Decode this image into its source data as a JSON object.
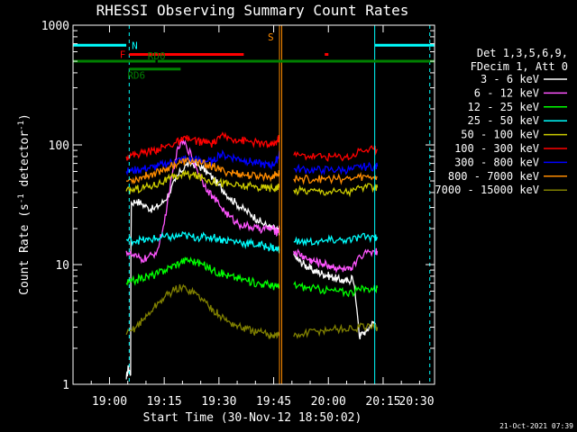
{
  "chart_data": {
    "type": "line",
    "title": "RHESSI Observing Summary Count Rates",
    "xlabel": "Start Time (30-Nov-12 18:50:02)",
    "ylabel_pre": "Count Rate (s",
    "ylabel_sup1": "-1",
    "ylabel_mid": " detector",
    "ylabel_sup2": "-1",
    "ylabel_post": ")",
    "y_scale": "log",
    "ylim": [
      1,
      1000
    ],
    "xlim_min": [
      0,
      99.1
    ],
    "x_ticks": [
      {
        "min": 10,
        "label": "19:00"
      },
      {
        "min": 25,
        "label": "19:15"
      },
      {
        "min": 40,
        "label": "19:30"
      },
      {
        "min": 55,
        "label": "19:45"
      },
      {
        "min": 70,
        "label": "20:00"
      },
      {
        "min": 85,
        "label": "20:15"
      },
      {
        "min": 100,
        "label": "20:30"
      }
    ],
    "y_ticks": [
      {
        "value": 1,
        "label": "1"
      },
      {
        "value": 10,
        "label": "10"
      },
      {
        "value": 100,
        "label": "100"
      },
      {
        "value": 1000,
        "label": "1000"
      }
    ],
    "legend_placement": "right",
    "legend_header": [
      "Det 1,3,5,6,9,",
      "FDecim 1, Att 0"
    ],
    "series": [
      {
        "name": "3 - 6 keV",
        "color": "#ffffff",
        "x": [
          14.6,
          15.2,
          15.8,
          16,
          17.5,
          19,
          20.5,
          22,
          23.5,
          25,
          26.5,
          28,
          29.5,
          31,
          32.5,
          34,
          35.5,
          37,
          38.5,
          40,
          41.5,
          43,
          44.5,
          46,
          47.5,
          49,
          50.5,
          52,
          53.5,
          54.5,
          55.5,
          56.1,
          56.6,
          60.5,
          61.5,
          62.5,
          63.5,
          64.5,
          65.5,
          66.5,
          67.5,
          68.5,
          69.5,
          70.5,
          71.5,
          72.5,
          73.5,
          74.5,
          75.5,
          76.5,
          78.5,
          79.5,
          80.5,
          81.5,
          82.5,
          83.4
        ],
        "y": [
          1.1,
          1.4,
          1.2,
          33,
          34,
          32,
          30,
          29,
          31,
          34,
          40,
          50,
          60,
          68,
          70,
          68,
          64,
          58,
          52,
          46,
          41,
          36,
          33,
          30,
          28,
          26,
          24,
          22,
          21,
          20,
          20,
          19,
          19,
          12,
          11,
          10.5,
          10,
          9.5,
          9,
          8.8,
          8.6,
          8.4,
          8.2,
          8,
          7.8,
          7.6,
          7.4,
          7.3,
          7.2,
          8,
          2.5,
          2.7,
          2.8,
          3.1,
          3.3,
          3
        ]
      },
      {
        "name": "6 - 12 keV",
        "color": "#ff55ff",
        "x": [
          14.6,
          16,
          17.5,
          19,
          20.5,
          22,
          23.5,
          25,
          26.5,
          28,
          29.5,
          31,
          32.5,
          34,
          35.5,
          37,
          38.5,
          40,
          41.5,
          43,
          44.5,
          46,
          47.5,
          49,
          50.5,
          52,
          53.5,
          54.5,
          55.5,
          56.1,
          56.6,
          60.5,
          61.5,
          62.5,
          63.5,
          64.5,
          65.5,
          66.5,
          67.5,
          68.5,
          69.5,
          70.5,
          71.5,
          72.5,
          73.5,
          74.5,
          75.5,
          76.5,
          78.5,
          80.5,
          82.5,
          83.4
        ],
        "y": [
          13,
          12,
          11.5,
          11,
          11.5,
          12,
          14,
          22,
          40,
          75,
          105,
          100,
          80,
          62,
          50,
          42,
          36,
          32,
          28,
          25,
          23,
          21.5,
          21,
          20.5,
          20,
          20,
          20,
          20,
          19,
          19,
          20,
          13,
          12.5,
          12,
          11.5,
          11,
          10.8,
          10.6,
          10.4,
          10.2,
          10,
          9.8,
          9.6,
          9.4,
          9.2,
          9,
          9,
          9,
          12,
          12.5,
          13,
          13
        ]
      },
      {
        "name": "12 - 25 keV",
        "color": "#00ff00",
        "x": [
          14.6,
          16,
          17.5,
          19,
          20.5,
          22,
          23.5,
          25,
          26.5,
          28,
          29.5,
          31,
          32.5,
          34,
          35.5,
          37,
          38.5,
          40,
          41.5,
          43,
          44.5,
          46,
          47.5,
          49,
          50.5,
          52,
          53.5,
          54.5,
          55.5,
          56.1,
          56.6,
          60.5,
          62.5,
          64.5,
          66.5,
          68.5,
          70.5,
          72.5,
          74.5,
          76.5,
          78.5,
          80.5,
          82.5,
          83.4
        ],
        "y": [
          7,
          7.2,
          7.5,
          7.8,
          8,
          8.2,
          8.5,
          9,
          9.5,
          10,
          10.5,
          11,
          10.8,
          10.5,
          10,
          9.5,
          9,
          8.6,
          8.3,
          8,
          7.8,
          7.6,
          7.4,
          7.2,
          7,
          6.9,
          6.8,
          6.7,
          6.6,
          6.5,
          6.5,
          6.8,
          6.6,
          6.4,
          6.3,
          6.2,
          6.1,
          6,
          5.9,
          5.9,
          6.2,
          6.3,
          6.4,
          6.4
        ]
      },
      {
        "name": "25 - 50 keV",
        "color": "#00ffff",
        "x": [
          14.6,
          16,
          17.5,
          19,
          20.5,
          22,
          23.5,
          25,
          26.5,
          28,
          29.5,
          31,
          32.5,
          34,
          35.5,
          37,
          38.5,
          40,
          41.5,
          43,
          44.5,
          46,
          47.5,
          49,
          50.5,
          52,
          53.5,
          54.5,
          55.5,
          56.1,
          56.6,
          60.5,
          62.5,
          64.5,
          66.5,
          68.5,
          70.5,
          72.5,
          74.5,
          76.5,
          78.5,
          80.5,
          82.5,
          83.4
        ],
        "y": [
          16,
          16,
          16,
          16,
          16,
          16.5,
          16.5,
          17,
          17,
          17,
          17.5,
          17.5,
          17,
          17,
          17,
          17,
          17,
          16.5,
          16,
          16,
          15.5,
          15.5,
          15,
          15,
          14.5,
          14.5,
          14,
          14,
          13.5,
          13.5,
          13.5,
          15.5,
          15.5,
          15.5,
          15.5,
          15.5,
          16,
          16,
          16,
          16,
          17,
          17,
          17,
          17
        ]
      },
      {
        "name": "50 - 100 keV",
        "color": "#cccc00",
        "x": [
          14.6,
          16,
          17.5,
          19,
          20.5,
          22,
          23.5,
          25,
          26.5,
          28,
          29.5,
          31,
          32.5,
          34,
          35.5,
          37,
          38.5,
          40,
          41.5,
          43,
          44.5,
          46,
          47.5,
          49,
          50.5,
          52,
          53.5,
          54.5,
          55.5,
          56.1,
          56.6,
          60.5,
          62.5,
          64.5,
          66.5,
          68.5,
          70.5,
          72.5,
          74.5,
          76.5,
          78.5,
          80.5,
          82.5,
          83.4
        ],
        "y": [
          41,
          42,
          43,
          44,
          45,
          46,
          48,
          50,
          52,
          54,
          56,
          57,
          56,
          55,
          53,
          51,
          50,
          49,
          48,
          47,
          46,
          45.5,
          45,
          45,
          44.5,
          44,
          44,
          44,
          44,
          44,
          44,
          42,
          42,
          41.5,
          41.5,
          41,
          41,
          41,
          41,
          41,
          44,
          44,
          44,
          44
        ]
      },
      {
        "name": "100 - 300 keV",
        "color": "#ff0000",
        "x": [
          14.6,
          16,
          17.5,
          19,
          20.5,
          22,
          23.5,
          25,
          26.5,
          28,
          29.5,
          31,
          32.5,
          34,
          35.5,
          37,
          38.5,
          40,
          41.5,
          43,
          44.5,
          46,
          47.5,
          49,
          50.5,
          52,
          53.5,
          54.5,
          55.5,
          56.1,
          56.6,
          60.5,
          62.5,
          64.5,
          66.5,
          68.5,
          70.5,
          72.5,
          74.5,
          76.5,
          78.5,
          80.5,
          82.5,
          83.4
        ],
        "y": [
          80,
          82,
          84,
          86,
          88,
          90,
          93,
          96,
          100,
          104,
          108,
          112,
          110,
          108,
          106,
          104,
          102,
          118,
          116,
          114,
          112,
          110,
          108,
          106,
          104,
          102,
          100,
          100,
          105,
          110,
          116,
          82,
          82,
          81,
          81,
          80,
          80,
          80,
          80,
          80,
          90,
          91,
          92,
          92
        ]
      },
      {
        "name": "300 - 800 keV",
        "color": "#0000ff",
        "x": [
          14.6,
          16,
          17.5,
          19,
          20.5,
          22,
          23.5,
          25,
          26.5,
          28,
          29.5,
          31,
          32.5,
          34,
          35.5,
          37,
          38.5,
          40,
          41.5,
          43,
          44.5,
          46,
          47.5,
          49,
          50.5,
          52,
          53.5,
          54.5,
          55.5,
          56.1,
          56.6,
          60.5,
          62.5,
          64.5,
          66.5,
          68.5,
          70.5,
          72.5,
          74.5,
          76.5,
          78.5,
          80.5,
          82.5,
          83.4
        ],
        "y": [
          60,
          61,
          62,
          63,
          64,
          65,
          67,
          69,
          71,
          73,
          75,
          77,
          76,
          75,
          74,
          73,
          72,
          84,
          82,
          80,
          78,
          76,
          74,
          72,
          70,
          69,
          68,
          68,
          72,
          78,
          86,
          63,
          63,
          62,
          62,
          62,
          62,
          62,
          62,
          62,
          65,
          66,
          66,
          66
        ]
      },
      {
        "name": "800 - 7000 keV",
        "color": "#ff8c00",
        "x": [
          14.6,
          16,
          17.5,
          19,
          20.5,
          22,
          23.5,
          25,
          26.5,
          28,
          29.5,
          31,
          32.5,
          34,
          35.5,
          37,
          38.5,
          40,
          41.5,
          43,
          44.5,
          46,
          47.5,
          49,
          50.5,
          52,
          53.5,
          54.5,
          55.5,
          56.1,
          56.6,
          60.5,
          62.5,
          64.5,
          66.5,
          68.5,
          70.5,
          72.5,
          74.5,
          76.5,
          78.5,
          80.5,
          82.5,
          83.4
        ],
        "y": [
          50,
          51,
          52,
          54,
          56,
          58,
          60,
          63,
          66,
          69,
          71,
          73,
          73,
          72,
          70,
          68,
          66,
          62,
          60,
          59,
          58,
          57,
          56,
          55,
          55,
          55,
          55,
          55,
          56,
          57,
          58,
          52,
          52,
          52,
          52,
          52,
          52,
          52,
          52,
          52,
          54,
          54,
          54,
          54
        ]
      },
      {
        "name": "7000 - 15000 keV",
        "color": "#808000",
        "x": [
          14.6,
          16,
          17.5,
          19,
          20.5,
          22,
          23.5,
          25,
          26.5,
          28,
          29.5,
          31,
          32.5,
          34,
          35.5,
          37,
          38.5,
          40,
          41.5,
          43,
          44.5,
          46,
          47.5,
          49,
          50.5,
          52,
          53.5,
          54.5,
          55.5,
          56.1,
          56.6,
          60.5,
          62.5,
          64.5,
          66.5,
          68.5,
          70.5,
          72.5,
          74.5,
          76.5,
          78.5,
          80.5,
          82.5,
          83.4
        ],
        "y": [
          2.6,
          2.8,
          3.1,
          3.4,
          3.8,
          4.3,
          4.8,
          5.3,
          5.8,
          6.2,
          6.4,
          6.3,
          6,
          5.6,
          5.1,
          4.6,
          4.2,
          3.8,
          3.5,
          3.3,
          3.1,
          3,
          2.9,
          2.8,
          2.7,
          2.7,
          2.6,
          2.6,
          2.6,
          2.6,
          2.6,
          2.5,
          2.6,
          2.7,
          2.8,
          2.8,
          2.9,
          2.9,
          2.9,
          2.9,
          3,
          3,
          3,
          3
        ]
      }
    ],
    "intervals": [
      {
        "label": "N",
        "color": "#00ffff",
        "y": 680,
        "spans": [
          [
            0,
            14.6
          ],
          [
            82.7,
            99.1
          ]
        ]
      },
      {
        "label": "F",
        "color": "#ff0000",
        "y": 570,
        "spans": [
          [
            15.4,
            46.8
          ],
          [
            69,
            70
          ]
        ]
      },
      {
        "label": "RD0",
        "color": "#008000",
        "y": 500,
        "spans": [
          [
            0,
            22.6
          ],
          [
            23.2,
            99.1
          ]
        ]
      },
      {
        "label": "RD6",
        "color": "#008000",
        "y": 430,
        "spans": [
          [
            15.4,
            29.5
          ]
        ]
      }
    ],
    "markers": [
      {
        "label": "S",
        "color": "#ff8c00",
        "min": 56.6,
        "style": "solid"
      },
      {
        "color": "#ff8c00",
        "min": 57.2,
        "style": "solid"
      }
    ],
    "vlines": [
      {
        "color": "#00ffff",
        "min": 0,
        "style": "solid"
      },
      {
        "color": "#00ffff",
        "min": 15.4,
        "style": "dashed"
      },
      {
        "color": "#00ffff",
        "min": 82.7,
        "style": "solid"
      },
      {
        "color": "#00ffff",
        "min": 97.8,
        "style": "dashed"
      }
    ],
    "footer_timestamp": "21-Oct-2021 07:39"
  }
}
